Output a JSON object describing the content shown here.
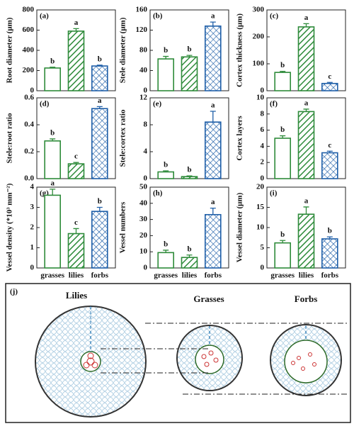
{
  "chart_data": [
    {
      "type": "bar",
      "panel": "(a)",
      "ylabel": "Root diameter (μm)",
      "categories": [
        null,
        null,
        null
      ],
      "values": [
        225,
        590,
        245
      ],
      "errors": [
        8,
        25,
        8
      ],
      "letters": [
        "b",
        "a",
        "b"
      ],
      "colors": [
        "#2e8b3a",
        "#2e8b3a",
        "#1f5fa8"
      ],
      "patterns": [
        "none",
        "hatch",
        "cross"
      ],
      "ylim": [
        0,
        800
      ],
      "yticks": [
        0,
        200,
        400,
        600,
        800
      ]
    },
    {
      "type": "bar",
      "panel": "(b)",
      "ylabel": "Stele diameter (μm)",
      "categories": [
        null,
        null,
        null
      ],
      "values": [
        63,
        67,
        128
      ],
      "errors": [
        5,
        3,
        8
      ],
      "letters": [
        "b",
        "b",
        "a"
      ],
      "colors": [
        "#2e8b3a",
        "#2e8b3a",
        "#1f5fa8"
      ],
      "patterns": [
        "none",
        "hatch",
        "cross"
      ],
      "ylim": [
        0,
        160
      ],
      "yticks": [
        0,
        40,
        80,
        120,
        160
      ]
    },
    {
      "type": "bar",
      "panel": "(c)",
      "ylabel": "Cortex thickness (μm)",
      "categories": [
        null,
        null,
        null
      ],
      "values": [
        68,
        237,
        27
      ],
      "errors": [
        4,
        12,
        4
      ],
      "letters": [
        "b",
        "a",
        "c"
      ],
      "colors": [
        "#2e8b3a",
        "#2e8b3a",
        "#1f5fa8"
      ],
      "patterns": [
        "none",
        "hatch",
        "cross"
      ],
      "ylim": [
        0,
        300
      ],
      "yticks": [
        0,
        100,
        200,
        300
      ]
    },
    {
      "type": "bar",
      "panel": "(d)",
      "ylabel": "Stele:root ratio",
      "categories": [
        null,
        null,
        null
      ],
      "values": [
        0.28,
        0.11,
        0.52
      ],
      "errors": [
        0.015,
        0.01,
        0.015
      ],
      "letters": [
        "b",
        "c",
        "a"
      ],
      "colors": [
        "#2e8b3a",
        "#2e8b3a",
        "#1f5fa8"
      ],
      "patterns": [
        "none",
        "hatch",
        "cross"
      ],
      "ylim": [
        0,
        0.6
      ],
      "yticks": [
        {
          "value": 0,
          "label": "0.0"
        },
        0.2,
        0.4,
        0.6
      ]
    },
    {
      "type": "bar",
      "panel": "(e)",
      "ylabel": "Stele:cortex ratio",
      "categories": [
        null,
        null,
        null
      ],
      "values": [
        1.0,
        0.3,
        8.4
      ],
      "errors": [
        0.15,
        0.1,
        1.6
      ],
      "letters": [
        "b",
        "b",
        "a"
      ],
      "colors": [
        "#2e8b3a",
        "#2e8b3a",
        "#1f5fa8"
      ],
      "patterns": [
        "none",
        "hatch",
        "cross"
      ],
      "ylim": [
        0,
        12
      ],
      "yticks": [
        0,
        4,
        8,
        12
      ]
    },
    {
      "type": "bar",
      "panel": "(f)",
      "ylabel": "Cortex layers",
      "categories": [
        null,
        null,
        null
      ],
      "values": [
        5.0,
        8.3,
        3.2
      ],
      "errors": [
        0.3,
        0.3,
        0.2
      ],
      "letters": [
        "b",
        "a",
        "c"
      ],
      "colors": [
        "#2e8b3a",
        "#2e8b3a",
        "#1f5fa8"
      ],
      "patterns": [
        "none",
        "hatch",
        "cross"
      ],
      "ylim": [
        0,
        10
      ],
      "yticks": [
        0,
        2,
        4,
        6,
        8,
        10
      ]
    },
    {
      "type": "bar",
      "panel": "(g)",
      "ylabel": "Vessel density (*10³ mm⁻²)",
      "categories": [
        "grasses",
        "lilies",
        "forbs"
      ],
      "values": [
        3.6,
        1.7,
        2.8
      ],
      "errors": [
        0.3,
        0.25,
        0.2
      ],
      "letters": [
        "a",
        "c",
        "b"
      ],
      "colors": [
        "#2e8b3a",
        "#2e8b3a",
        "#1f5fa8"
      ],
      "patterns": [
        "none",
        "hatch",
        "cross"
      ],
      "ylim": [
        0,
        4
      ],
      "yticks": [
        0,
        1,
        2,
        3,
        4
      ]
    },
    {
      "type": "bar",
      "panel": "(h)",
      "ylabel": "Vessel numbers",
      "categories": [
        "grasses",
        "lilies",
        "forbs"
      ],
      "values": [
        9.5,
        6.5,
        33
      ],
      "errors": [
        1.5,
        1.5,
        4
      ],
      "letters": [
        "b",
        "b",
        "a"
      ],
      "colors": [
        "#2e8b3a",
        "#2e8b3a",
        "#1f5fa8"
      ],
      "patterns": [
        "none",
        "hatch",
        "cross"
      ],
      "ylim": [
        0,
        50
      ],
      "yticks": [
        0,
        10,
        20,
        30,
        40,
        50
      ]
    },
    {
      "type": "bar",
      "panel": "(i)",
      "ylabel": "Vessel diameter (μm)",
      "categories": [
        "grasses",
        "lilies",
        "forbs"
      ],
      "values": [
        6.2,
        13.3,
        7.2
      ],
      "errors": [
        0.6,
        1.8,
        0.5
      ],
      "letters": [
        "b",
        "a",
        "b"
      ],
      "colors": [
        "#2e8b3a",
        "#2e8b3a",
        "#1f5fa8"
      ],
      "patterns": [
        "none",
        "hatch",
        "cross"
      ],
      "ylim": [
        0,
        20
      ],
      "yticks": [
        0,
        5,
        10,
        15,
        20
      ]
    }
  ],
  "diagram": {
    "label": "(j)",
    "titles": [
      "Lilies",
      "Grasses",
      "Forbs"
    ]
  }
}
